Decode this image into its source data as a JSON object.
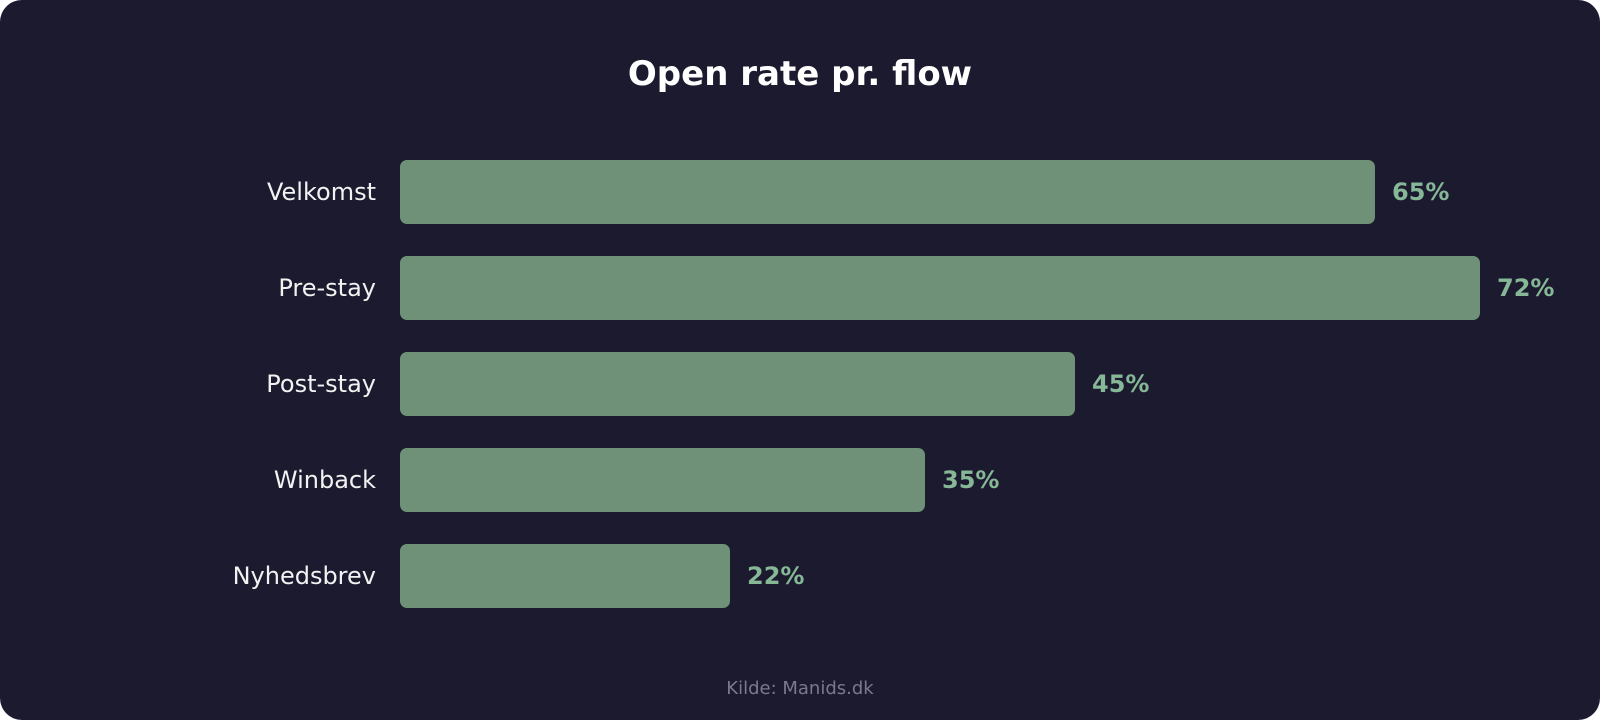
{
  "chart_data": {
    "type": "bar",
    "orientation": "horizontal",
    "title": "Open rate pr. flow",
    "categories": [
      "Velkomst",
      "Pre-stay",
      "Post-stay",
      "Winback",
      "Nyhedsbrev"
    ],
    "values": [
      65,
      72,
      45,
      35,
      22
    ],
    "value_labels": [
      "65%",
      "72%",
      "45%",
      "35%",
      "22%"
    ],
    "unit": "%",
    "xlim": [
      0,
      72
    ],
    "grid": false,
    "legend": "none"
  },
  "source": "Kilde: Manids.dk",
  "colors": {
    "background": "#1b1a2f",
    "bar": "#6e9177",
    "value_text": "#86b796",
    "category_text": "#f2f2f2",
    "title_text": "#ffffff",
    "source_text": "#7b7a8c"
  }
}
